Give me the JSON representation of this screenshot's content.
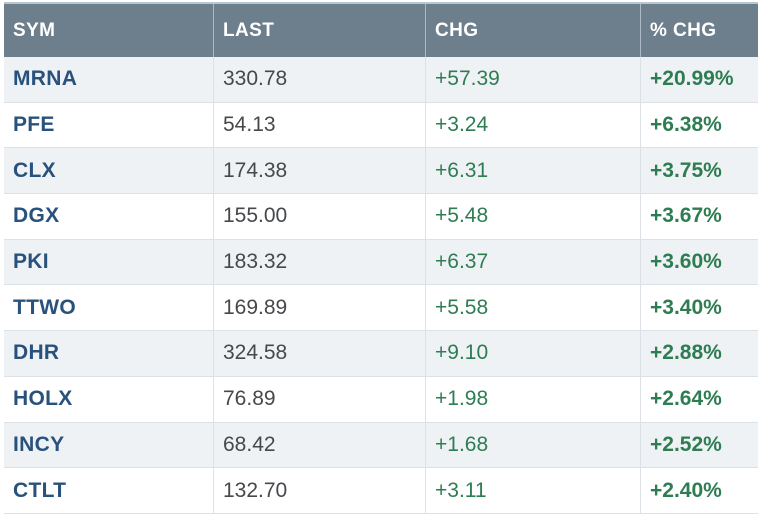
{
  "table": {
    "columns": [
      {
        "key": "sym",
        "label": "SYM"
      },
      {
        "key": "last",
        "label": "LAST"
      },
      {
        "key": "chg",
        "label": "CHG"
      },
      {
        "key": "pct_chg",
        "label": "% CHG"
      }
    ],
    "rows": [
      {
        "sym": "MRNA",
        "last": "330.78",
        "chg": "+57.39",
        "pct_chg": "+20.99%"
      },
      {
        "sym": "PFE",
        "last": "54.13",
        "chg": "+3.24",
        "pct_chg": "+6.38%"
      },
      {
        "sym": "CLX",
        "last": "174.38",
        "chg": "+6.31",
        "pct_chg": "+3.75%"
      },
      {
        "sym": "DGX",
        "last": "155.00",
        "chg": "+5.48",
        "pct_chg": "+3.67%"
      },
      {
        "sym": "PKI",
        "last": "183.32",
        "chg": "+6.37",
        "pct_chg": "+3.60%"
      },
      {
        "sym": "TTWO",
        "last": "169.89",
        "chg": "+5.58",
        "pct_chg": "+3.40%"
      },
      {
        "sym": "DHR",
        "last": "324.58",
        "chg": "+9.10",
        "pct_chg": "+2.88%"
      },
      {
        "sym": "HOLX",
        "last": "76.89",
        "chg": "+1.98",
        "pct_chg": "+2.64%"
      },
      {
        "sym": "INCY",
        "last": "68.42",
        "chg": "+1.68",
        "pct_chg": "+2.52%"
      },
      {
        "sym": "CTLT",
        "last": "132.70",
        "chg": "+3.11",
        "pct_chg": "+2.40%"
      }
    ],
    "colors": {
      "header_bg": "#6d7e8d",
      "header_text": "#ffffff",
      "row_alt_bg": "#eff2f5",
      "row_bg": "#ffffff",
      "symbol_color": "#28517c",
      "value_color": "#46484b",
      "positive_color": "#2e7d52",
      "border_color": "#dbe1e6",
      "top_border": "#b9c6ce",
      "header_divider": "#aebac3"
    }
  }
}
